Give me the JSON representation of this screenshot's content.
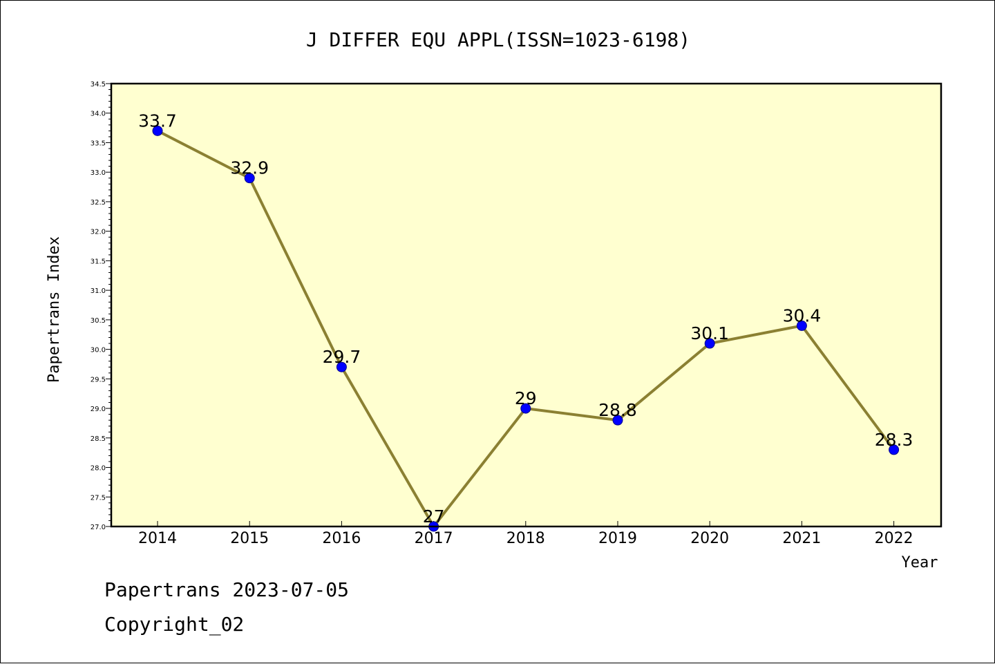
{
  "chart_data": {
    "type": "line",
    "title": "J DIFFER EQU APPL(ISSN=1023-6198)",
    "xlabel": "Year",
    "ylabel": "Papertrans Index",
    "categories": [
      "2014",
      "2015",
      "2016",
      "2017",
      "2018",
      "2019",
      "2020",
      "2021",
      "2022"
    ],
    "values": [
      33.7,
      32.9,
      29.7,
      27,
      29,
      28.8,
      30.1,
      30.4,
      28.3
    ],
    "data_labels": [
      "33.7",
      "32.9",
      "29.7",
      "27",
      "29",
      "28.8",
      "30.1",
      "30.4",
      "28.3"
    ],
    "ylim": [
      27.0,
      34.5
    ],
    "yticks": [
      "27.0",
      "27.5",
      "28.0",
      "28.5",
      "29.0",
      "29.5",
      "30.0",
      "30.5",
      "31.0",
      "31.5",
      "32.0",
      "32.5",
      "33.0",
      "33.5",
      "34.0",
      "34.5"
    ],
    "grid": false,
    "colors": {
      "plot_background": "#ffffd0",
      "line": "#8b8032",
      "marker": "#0000ff"
    }
  },
  "footer": {
    "line1": "Papertrans 2023-07-05",
    "line2": "Copyright_02"
  }
}
